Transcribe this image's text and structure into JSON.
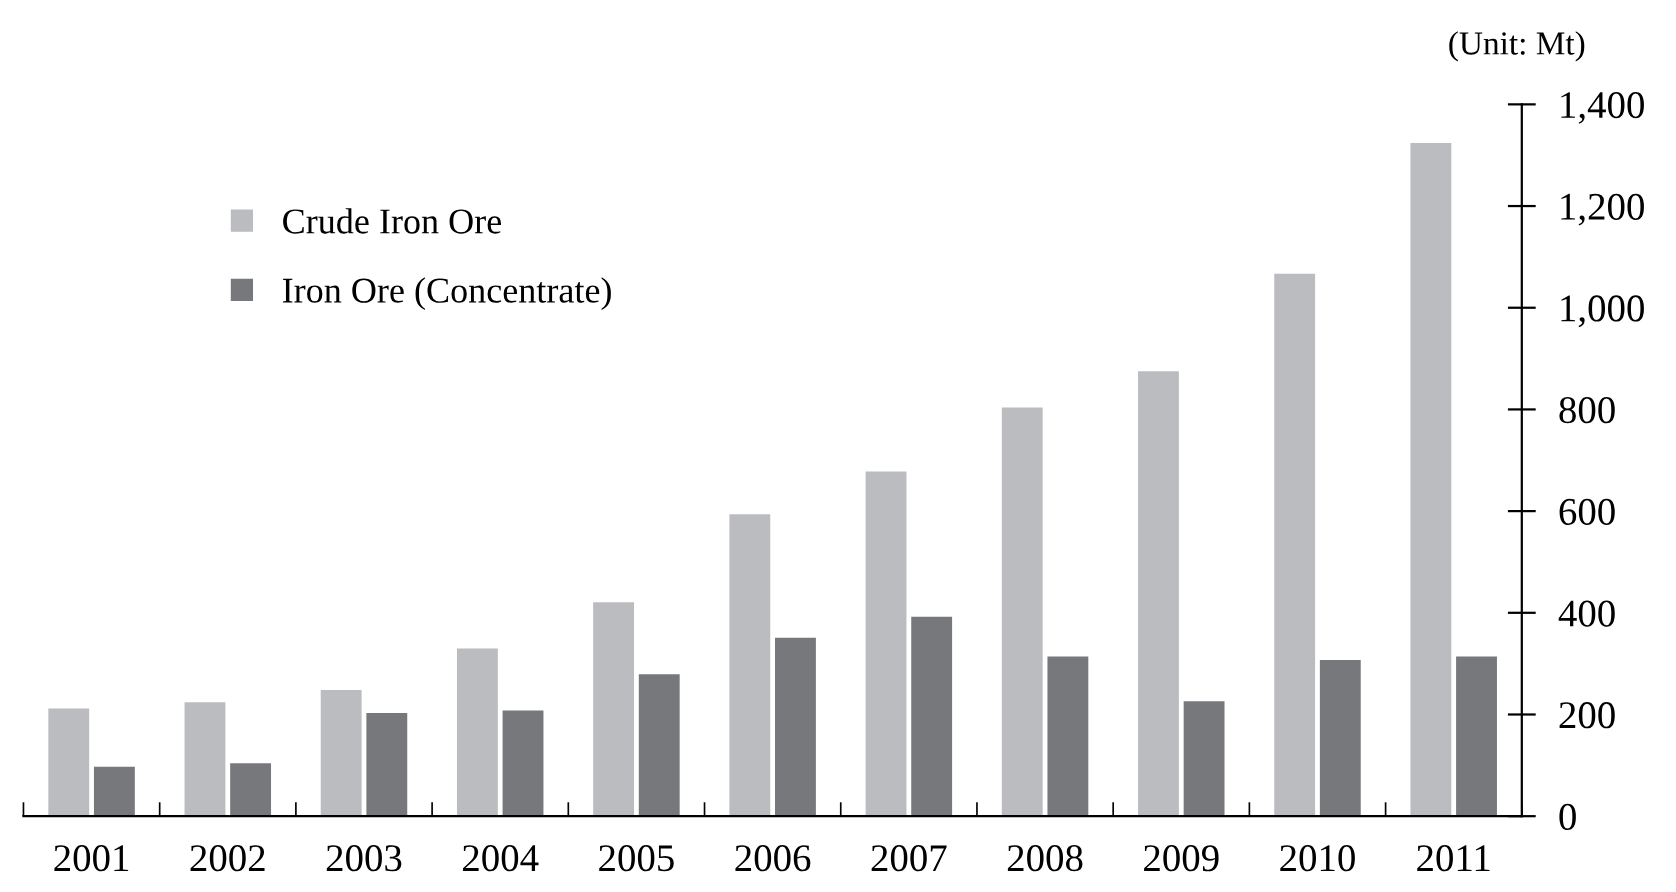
{
  "chart_data": {
    "type": "bar",
    "categories": [
      "2001",
      "2002",
      "2003",
      "2004",
      "2005",
      "2006",
      "2007",
      "2008",
      "2009",
      "2010",
      "2011"
    ],
    "series": [
      {
        "name": "Crude Iron Ore",
        "color": "#bbbcbf",
        "values": [
          212,
          224,
          248,
          330,
          421,
          594,
          678,
          804,
          875,
          1067,
          1324
        ]
      },
      {
        "name": "Iron Ore (Concentrate)",
        "color": "#77787c",
        "values": [
          97,
          104,
          203,
          208,
          279,
          351,
          392,
          314,
          226,
          307,
          314
        ]
      }
    ],
    "ylim": [
      0,
      1400
    ],
    "yticks": [
      0,
      {
        "value": 200,
        "label": "200"
      },
      {
        "value": 400,
        "label": "400"
      },
      {
        "value": 600,
        "label": "600"
      },
      {
        "value": 800,
        "label": "800"
      },
      {
        "value": 1000,
        "label": "1,000"
      },
      {
        "value": 1200,
        "label": "1,200"
      },
      {
        "value": 1400,
        "label": "1,400"
      }
    ],
    "annotations": [
      "(Unit: Mt)"
    ],
    "legend": "top left",
    "grid": false
  }
}
